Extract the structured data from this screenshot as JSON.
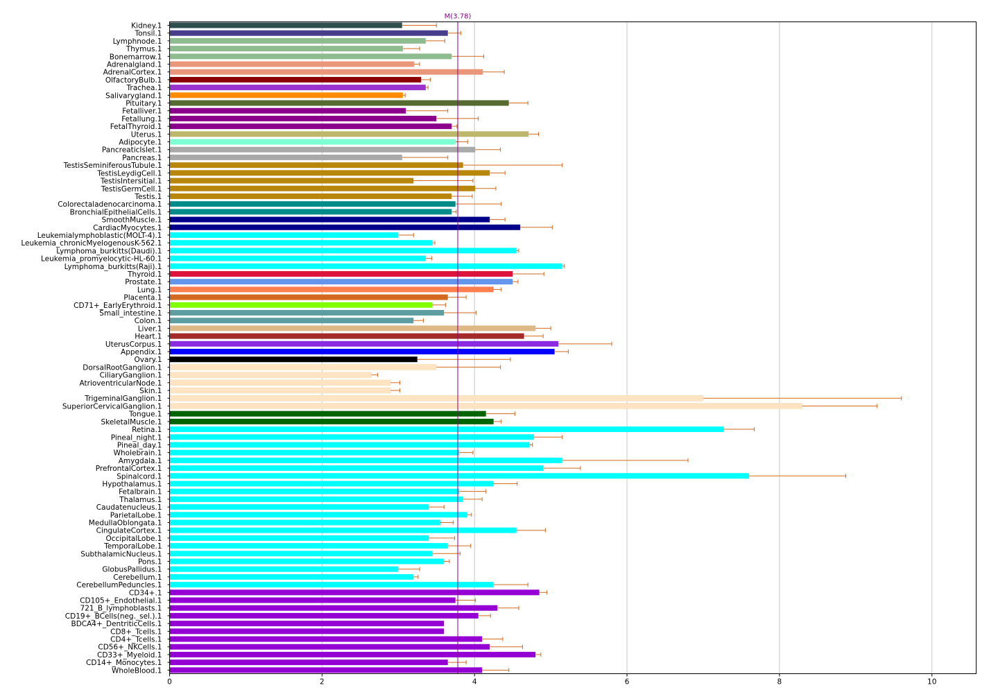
{
  "chart_data": {
    "type": "bar",
    "orientation": "horizontal",
    "title": "",
    "xlabel": "",
    "ylabel": "",
    "xlim": [
      0,
      10.58
    ],
    "x_ticks": [
      0,
      2,
      4,
      6,
      8,
      10
    ],
    "grid": "vertical",
    "error_bar_color": "#d2691e",
    "mean_line": {
      "value": 3.78,
      "label": "M(3.78)",
      "color": "#8b008b"
    },
    "categories": [
      "Kidney.1",
      "Tonsil.1",
      "Lymphnode.1",
      "Thymus.1",
      "Bonemarrow.1",
      "Adrenalgland.1",
      "AdrenalCortex.1",
      "OlfactoryBulb.1",
      "Trachea.1",
      "Salivarygland.1",
      "Pituitary.1",
      "Fetalliver.1",
      "Fetallung.1",
      "FetalThyroid.1",
      "Uterus.1",
      "Adipocyte.1",
      "PancreaticIslet.1",
      "Pancreas.1",
      "TestisSeminiferousTubule.1",
      "TestisLeydigCell.1",
      "TestisIntersitial.1",
      "TestisGermCell.1",
      "Testis.1",
      "Colorectaladenocarcinoma.1",
      "BronchialEpithelialCells.1",
      "SmoothMuscle.1",
      "CardiacMyocytes.1",
      "Leukemialymphoblastic(MOLT-4).1",
      "Leukemia_chronicMyelogenousK-562.1",
      "Lymphoma_burkitts(Daudi).1",
      "Leukemia_promyelocytic-HL-60.1",
      "Lymphoma_burkitts(Raji).1",
      "Thyroid.1",
      "Prostate.1",
      "Lung.1",
      "Placenta.1",
      "CD71+_EarlyErythroid.1",
      "Small_intestine.1",
      "Colon.1",
      "Liver.1",
      "Heart.1",
      "UterusCorpus.1",
      "Appendix.1",
      "Ovary.1",
      "DorsalRootGanglion.1",
      "CiliaryGanglion.1",
      "AtrioventricularNode.1",
      "Skin.1",
      "TrigeminalGanglion.1",
      "SuperiorCervicalGanglion.1",
      "Tongue.1",
      "SkeletalMuscle.1",
      "Retina.1",
      "Pineal_night.1",
      "Pineal_day.1",
      "Wholebrain.1",
      "Amygdala.1",
      "PrefrontalCortex.1",
      "Spinalcord.1",
      "Hypothalamus.1",
      "Fetalbrain.1",
      "Thalamus.1",
      "Caudatenucleus.1",
      "ParietalLobe.1",
      "MedullaOblongata.1",
      "CingulateCortex.1",
      "OccipitalLobe.1",
      "TemporalLobe.1",
      "SubthalamicNucleus.1",
      "Pons.1",
      "GlobusPallidus.1",
      "Cerebellum.1",
      "CerebellumPeduncles.1",
      "CD34+.1",
      "CD105+_Endothelial.1",
      "721_B_lymphoblasts.1",
      "CD19+_BCells(neg._sel.).1",
      "BDCA4+_DentriticCells.1",
      "CD8+_Tcells.1",
      "CD4+_Tcells.1",
      "CD56+_NKCells.1",
      "CD33+_Myeloid.1",
      "CD14+_Monocytes.1",
      "WholeBlood.1"
    ],
    "values": [
      3.05,
      3.65,
      3.36,
      3.06,
      3.7,
      3.21,
      4.11,
      3.3,
      3.36,
      3.06,
      4.45,
      3.1,
      3.5,
      3.7,
      4.71,
      3.75,
      4.01,
      3.05,
      3.85,
      4.2,
      3.2,
      4.01,
      3.7,
      3.75,
      3.7,
      4.2,
      4.6,
      3.0,
      3.45,
      4.55,
      3.36,
      5.15,
      4.5,
      4.5,
      4.25,
      3.65,
      3.45,
      3.6,
      3.2,
      4.8,
      4.65,
      5.1,
      5.05,
      3.25,
      3.5,
      2.65,
      2.9,
      2.9,
      7.0,
      8.3,
      4.15,
      4.25,
      7.27,
      4.78,
      4.72,
      3.8,
      5.15,
      4.9,
      7.6,
      4.25,
      3.8,
      3.85,
      3.4,
      3.9,
      3.55,
      4.55,
      3.4,
      3.65,
      3.45,
      3.6,
      3.0,
      3.2,
      4.25,
      4.85,
      3.75,
      4.3,
      4.05,
      3.6,
      3.6,
      4.1,
      4.2,
      4.8,
      3.65,
      4.1
    ],
    "errors": [
      0.45,
      0.17,
      0.25,
      0.22,
      0.42,
      0.07,
      0.28,
      0.12,
      0.03,
      0.03,
      0.25,
      0.55,
      0.55,
      0.07,
      0.13,
      0.16,
      0.33,
      0.6,
      1.3,
      0.2,
      0.78,
      0.27,
      0.27,
      0.6,
      0.06,
      0.2,
      0.42,
      0.2,
      0.03,
      0.03,
      0.08,
      0.03,
      0.41,
      0.07,
      0.1,
      0.24,
      0.17,
      0.42,
      0.13,
      0.2,
      0.25,
      0.7,
      0.18,
      1.22,
      0.84,
      0.08,
      0.12,
      0.12,
      2.6,
      0.98,
      0.38,
      0.1,
      0.4,
      0.37,
      0.04,
      0.18,
      1.65,
      0.49,
      1.27,
      0.31,
      0.35,
      0.25,
      0.2,
      0.06,
      0.17,
      0.38,
      0.34,
      0.3,
      0.36,
      0.07,
      0.28,
      0.06,
      0.45,
      0.1,
      0.26,
      0.28,
      0.16,
      0.0,
      0.0,
      0.27,
      0.43,
      0.07,
      0.24,
      0.35
    ],
    "colors": [
      "#2f4f4f",
      "#483d8b",
      "#8fbc8f",
      "#8fbc8f",
      "#8fbc8f",
      "#e9967a",
      "#e9967a",
      "#8b0000",
      "#9932cc",
      "#ff8c00",
      "#556b2f",
      "#8b008b",
      "#8b008b",
      "#8b008b",
      "#bdb76b",
      "#7fffd4",
      "#a9a9a9",
      "#a9a9a9",
      "#b8860b",
      "#b8860b",
      "#b8860b",
      "#b8860b",
      "#b8860b",
      "#008b8b",
      "#008b8b",
      "#00008b",
      "#00008b",
      "#00ffff",
      "#00ffff",
      "#00ffff",
      "#00ffff",
      "#00ffff",
      "#dc143c",
      "#6495ed",
      "#ff7f50",
      "#d2691e",
      "#7fff00",
      "#5f9ea0",
      "#5f9ea0",
      "#deb887",
      "#a52a2a",
      "#8a2be2",
      "#0000ff",
      "#000000",
      "#ffe4c4",
      "#ffe4c4",
      "#ffe4c4",
      "#ffe4c4",
      "#ffe4c4",
      "#ffe4c4",
      "#006400",
      "#006400",
      "#00ffff",
      "#00ffff",
      "#00ffff",
      "#00ffff",
      "#00ffff",
      "#00ffff",
      "#00ffff",
      "#00ffff",
      "#00ffff",
      "#00ffff",
      "#00ffff",
      "#00ffff",
      "#00ffff",
      "#00ffff",
      "#00ffff",
      "#00ffff",
      "#00ffff",
      "#00ffff",
      "#00ffff",
      "#00ffff",
      "#00ffff",
      "#9400d3",
      "#9400d3",
      "#9400d3",
      "#9400d3",
      "#9400d3",
      "#9400d3",
      "#9400d3",
      "#9400d3",
      "#9400d3",
      "#9400d3",
      "#9400d3"
    ]
  }
}
